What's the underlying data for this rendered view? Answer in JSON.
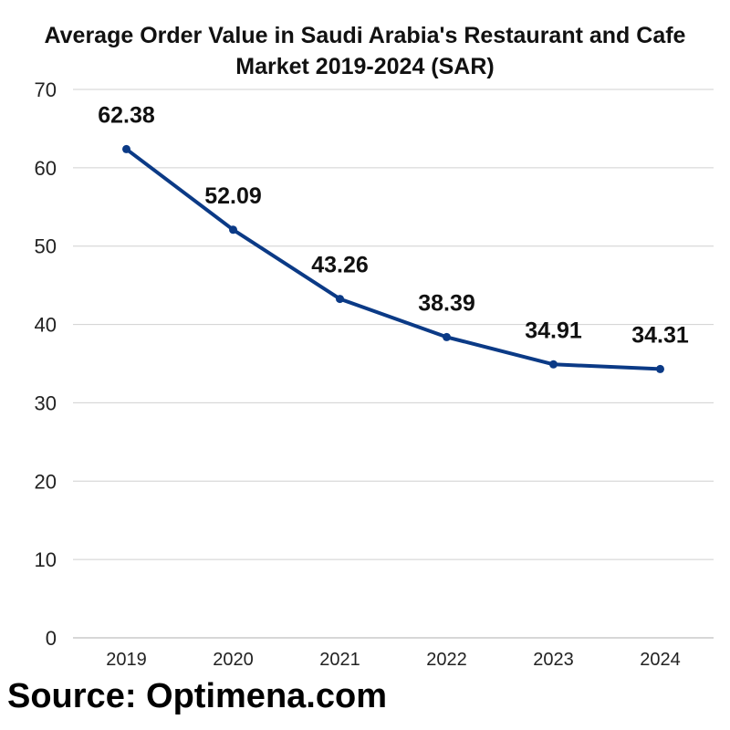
{
  "chart_data": {
    "type": "line",
    "title": "Average Order Value in Saudi Arabia's Restaurant and Cafe\nMarket 2019-2024 (SAR)",
    "xlabel": "",
    "ylabel": "",
    "categories": [
      "2019",
      "2020",
      "2021",
      "2022",
      "2023",
      "2024"
    ],
    "series": [
      {
        "values": [
          62.38,
          52.09,
          43.26,
          38.39,
          34.91,
          34.31
        ],
        "data_labels": [
          "62.38",
          "52.09",
          "43.26",
          "38.39",
          "34.91",
          "34.31"
        ],
        "color": "#0b3a86"
      }
    ],
    "ylim": [
      0,
      70
    ],
    "yticks": [
      0,
      10,
      20,
      30,
      40,
      50,
      60,
      70
    ],
    "grid": true,
    "legend": "none"
  },
  "colors": {
    "line": "#0b3a86",
    "grid": "#d0d0d0",
    "text": "#111111"
  },
  "source_text": "Source: Optimena.com"
}
